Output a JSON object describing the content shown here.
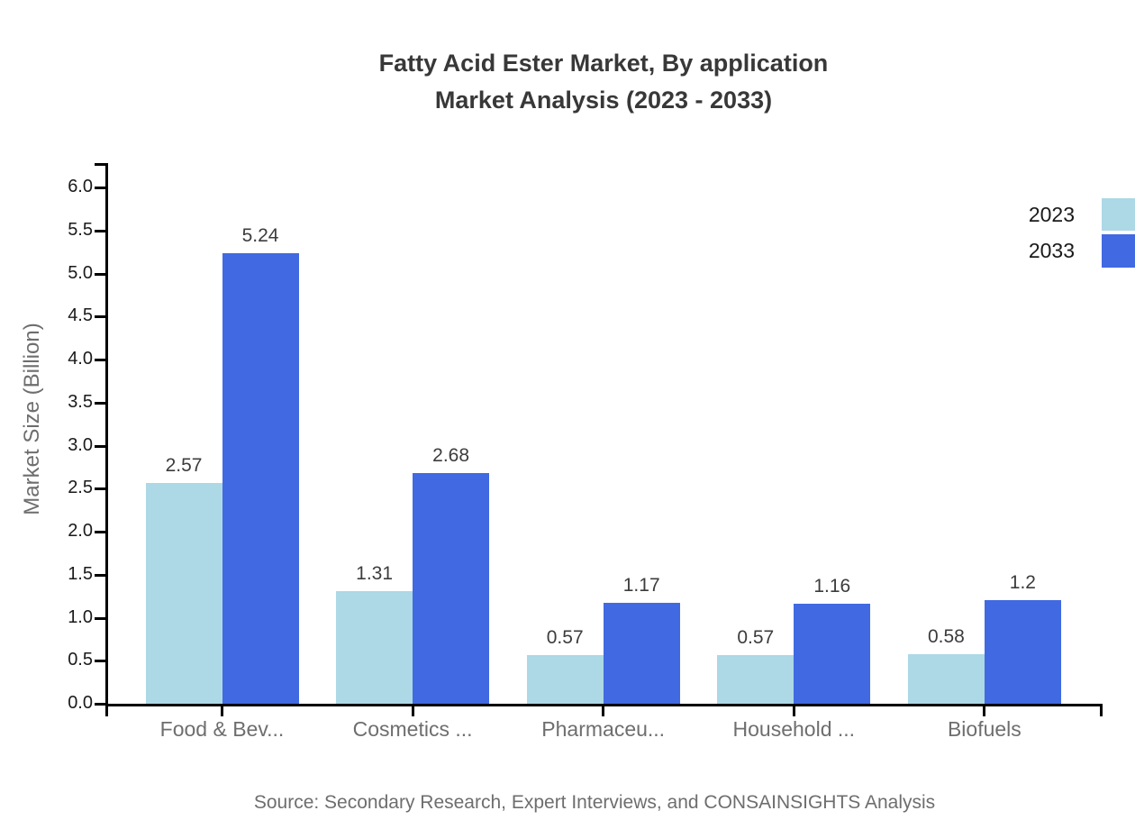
{
  "chart_data": {
    "type": "bar",
    "title": "Fatty Acid Ester Market, By application Market Analysis (2023 - 2033)",
    "title_line1": "Fatty Acid Ester Market, By application",
    "title_line2": "Market Analysis (2023 - 2033)",
    "categories": [
      "Food & Bev...",
      "Cosmetics ...",
      "Pharmaceu...",
      "Household ...",
      "Biofuels"
    ],
    "series": [
      {
        "name": "2023",
        "color": "#ADD8E6",
        "values": [
          2.57,
          1.31,
          0.57,
          0.57,
          0.58
        ]
      },
      {
        "name": "2033",
        "color": "#4169E1",
        "values": [
          5.24,
          2.68,
          1.17,
          1.16,
          1.2
        ]
      }
    ],
    "xlabel": "",
    "ylabel": "Market Size (Billion)",
    "ylim": [
      0,
      6
    ],
    "ytick_step": 0.5,
    "grid": false,
    "legend_position": "top-right",
    "value_labels_shown": true,
    "source": "Source: Secondary Research, Expert Interviews, and CONSAINSIGHTS Analysis",
    "colors": {
      "axis": "#000000",
      "title_text": "#383838",
      "tick_label_text": "#1a1a1a",
      "category_label_text": "#6e6e6e",
      "value_label_text": "#3c3c3c",
      "muted_text": "#6e6e6e",
      "background": "#ffffff"
    }
  }
}
